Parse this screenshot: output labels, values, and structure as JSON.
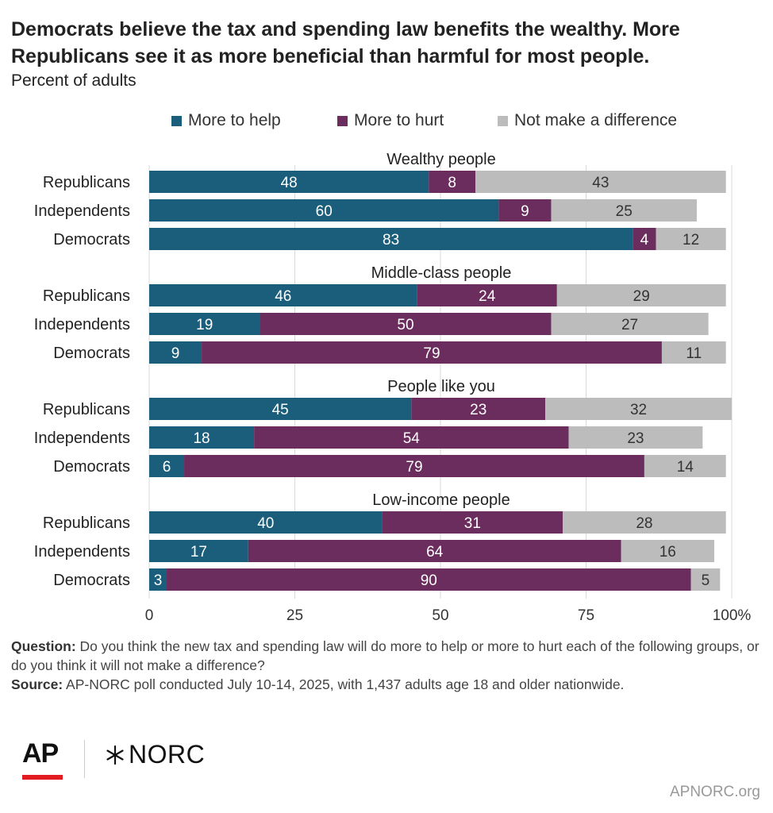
{
  "header": {
    "title_line1": "Democrats believe the tax and spending law benefits the wealthy. More",
    "title_line2": "Republicans see it as more beneficial than harmful for most people.",
    "subtitle": "Percent of adults"
  },
  "colors": {
    "help": "#1b5e7b",
    "hurt": "#6b2d5e",
    "none": "#bcbcbc",
    "grid": "#d9d9d9",
    "text": "#222222"
  },
  "legend": [
    {
      "label": "More to help",
      "color": "#1b5e7b"
    },
    {
      "label": "More to hurt",
      "color": "#6b2d5e"
    },
    {
      "label": "Not make a difference",
      "color": "#bcbcbc"
    }
  ],
  "chart_data": {
    "type": "bar",
    "orientation": "horizontal",
    "stacked": true,
    "series_names": [
      "More to help",
      "More to hurt",
      "Not make a difference"
    ],
    "xlim": [
      0,
      100
    ],
    "x_ticks": [
      "0",
      "25",
      "50",
      "75",
      "100%"
    ],
    "x_tick_values": [
      0,
      25,
      50,
      75,
      100
    ],
    "grid": true,
    "legend_position": "top",
    "groups": [
      {
        "title": "Wealthy people",
        "rows": [
          {
            "label": "Republicans",
            "values": [
              48,
              8,
              43
            ]
          },
          {
            "label": "Independents",
            "values": [
              60,
              9,
              25
            ]
          },
          {
            "label": "Democrats",
            "values": [
              83,
              4,
              12
            ]
          }
        ]
      },
      {
        "title": "Middle-class people",
        "rows": [
          {
            "label": "Republicans",
            "values": [
              46,
              24,
              29
            ]
          },
          {
            "label": "Independents",
            "values": [
              19,
              50,
              27
            ]
          },
          {
            "label": "Democrats",
            "values": [
              9,
              79,
              11
            ]
          }
        ]
      },
      {
        "title": "People like you",
        "rows": [
          {
            "label": "Republicans",
            "values": [
              45,
              23,
              32
            ]
          },
          {
            "label": "Independents",
            "values": [
              18,
              54,
              23
            ]
          },
          {
            "label": "Democrats",
            "values": [
              6,
              79,
              14
            ]
          }
        ]
      },
      {
        "title": "Low-income people",
        "rows": [
          {
            "label": "Republicans",
            "values": [
              40,
              31,
              28
            ]
          },
          {
            "label": "Independents",
            "values": [
              17,
              64,
              16
            ]
          },
          {
            "label": "Democrats",
            "values": [
              3,
              90,
              5
            ]
          }
        ]
      }
    ]
  },
  "footer": {
    "question_label": "Question:",
    "question_text": " Do you think the new tax and spending law will do more to help or more to hurt each of the following groups, or do you think it will not make a difference?",
    "source_label": "Source:",
    "source_text": " AP-NORC poll conducted July 10-14, 2025, with 1,437 adults age 18 and older nationwide.",
    "logo_ap": "AP",
    "logo_norc": "NORC",
    "site": "APNORC.org"
  }
}
